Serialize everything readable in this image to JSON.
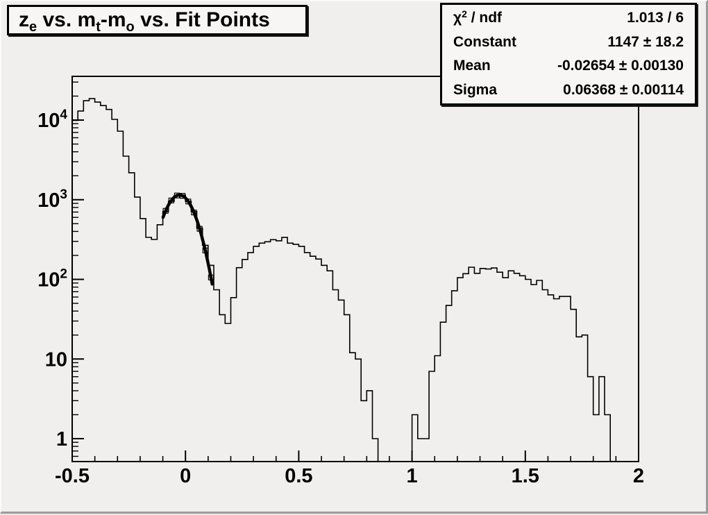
{
  "colors": {
    "canvas_bg": "#f1efed",
    "box_bg": "#f7f6f4",
    "line": "#000000",
    "border_dark": "#9b9b9b",
    "border_light": "#fbfaf9"
  },
  "title": {
    "text": "z_e vs. m_t-m_o vs. Fit Points",
    "parts": [
      {
        "t": "z"
      },
      {
        "sub": "e"
      },
      {
        "t": " vs. m"
      },
      {
        "sub": "t"
      },
      {
        "t": "-m"
      },
      {
        "sub": "o"
      },
      {
        "t": " vs. Fit Points"
      }
    ]
  },
  "stats": {
    "rows": [
      {
        "name": "chi2",
        "label_parts": [
          {
            "t": "χ"
          },
          {
            "sup": "2"
          },
          {
            "t": " / ndf"
          }
        ],
        "value": "1.013 / 6"
      },
      {
        "name": "constant",
        "label_parts": [
          {
            "t": "Constant"
          }
        ],
        "value": "1147 ± 18.2"
      },
      {
        "name": "mean",
        "label_parts": [
          {
            "t": "Mean"
          }
        ],
        "value": "-0.02654 ± 0.00130"
      },
      {
        "name": "sigma",
        "label_parts": [
          {
            "t": "Sigma"
          }
        ],
        "value": "0.06368 ± 0.00114"
      }
    ]
  },
  "chart_data": {
    "type": "bar",
    "subtype": "step-histogram",
    "title": "z_e vs. m_t-m_o vs. Fit Points",
    "xlabel": "",
    "ylabel": "",
    "y_scale": "log",
    "xlim": [
      -0.5,
      2
    ],
    "ylim": [
      0.516,
      35400
    ],
    "grid": false,
    "x_start": -0.5,
    "bin_width": 0.025,
    "n_bins": 100,
    "bins": [
      9900,
      13000,
      17500,
      18600,
      16800,
      15200,
      13600,
      10200,
      7250,
      3520,
      2180,
      1080,
      580,
      337,
      317,
      485,
      710,
      955,
      1120,
      1140,
      955,
      710,
      440,
      268,
      150,
      74,
      36,
      28,
      59,
      140,
      178,
      217,
      260,
      285,
      297,
      315,
      305,
      336,
      285,
      275,
      260,
      217,
      195,
      180,
      150,
      128,
      74,
      55,
      36,
      12,
      10,
      3,
      4,
      1,
      0,
      0,
      0,
      0,
      0,
      0,
      2,
      1,
      1,
      7,
      11,
      29,
      47,
      72,
      105,
      118,
      142,
      119,
      137,
      135,
      139,
      123,
      105,
      128,
      119,
      111,
      100,
      86,
      97,
      74,
      64,
      57,
      61,
      61,
      42,
      19,
      20,
      6,
      2,
      6,
      2,
      0,
      0,
      0,
      0,
      0
    ],
    "x_ticks": {
      "major": [
        {
          "v": -0.5,
          "label": "-0.5"
        },
        {
          "v": 0,
          "label": "0"
        },
        {
          "v": 0.5,
          "label": "0.5"
        },
        {
          "v": 1,
          "label": "1"
        },
        {
          "v": 1.5,
          "label": "1.5"
        },
        {
          "v": 2,
          "label": "2"
        }
      ],
      "minor_step": 0.1
    },
    "y_ticks": [
      {
        "v": 1,
        "base": "1",
        "exp": ""
      },
      {
        "v": 10,
        "base": "10",
        "exp": ""
      },
      {
        "v": 100,
        "base": "10",
        "exp": "2"
      },
      {
        "v": 1000,
        "base": "10",
        "exp": "3"
      },
      {
        "v": 10000,
        "base": "10",
        "exp": "4"
      }
    ],
    "fit": {
      "type": "gaussian",
      "chi2_ndf": "1.013 / 6",
      "constant": 1147,
      "constant_err": 18.2,
      "mean": -0.02654,
      "mean_err": 0.0013,
      "sigma": 0.06368,
      "sigma_err": 0.00114,
      "draw_range": [
        -0.099,
        0.118
      ],
      "marker": "open-square",
      "marker_x": [
        -0.0875,
        -0.0625,
        -0.0375,
        -0.0125,
        0.0125,
        0.0375,
        0.0625,
        0.0875,
        0.1125
      ]
    }
  }
}
